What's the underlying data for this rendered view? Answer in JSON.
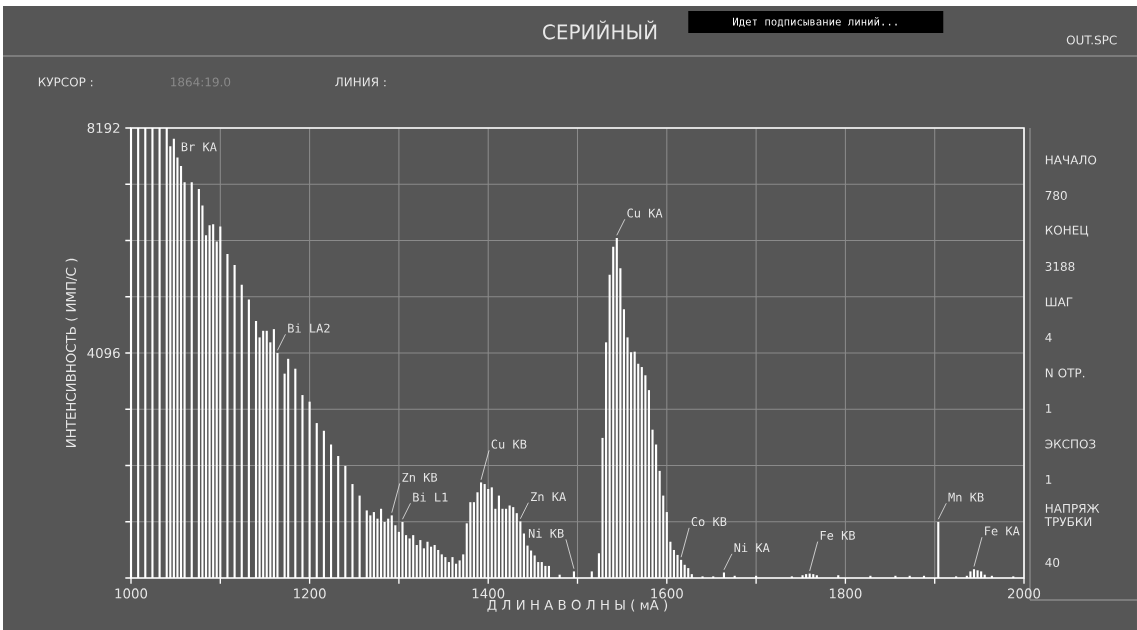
{
  "chart_data": {
    "type": "bar",
    "title": "СЕРИЙНЫЙ",
    "xlabel": "Д Л И Н А   В О Л Н Ы  ( мА )",
    "ylabel": "ИНТЕНСИВНОСТЬ ( ИМП/С )",
    "x": [
      1000,
      1008,
      1016,
      1024,
      1032,
      1040,
      1044,
      1048,
      1052,
      1056,
      1060,
      1068,
      1076,
      1080,
      1084,
      1088,
      1092,
      1096,
      1100,
      1108,
      1116,
      1124,
      1132,
      1140,
      1144,
      1148,
      1152,
      1156,
      1160,
      1164,
      1172,
      1176,
      1184,
      1192,
      1200,
      1208,
      1216,
      1224,
      1232,
      1240,
      1248,
      1256,
      1264,
      1268,
      1272,
      1276,
      1280,
      1284,
      1288,
      1292,
      1296,
      1300,
      1304,
      1308,
      1312,
      1316,
      1320,
      1324,
      1328,
      1332,
      1336,
      1340,
      1344,
      1348,
      1352,
      1356,
      1360,
      1364,
      1368,
      1372,
      1376,
      1380,
      1384,
      1388,
      1392,
      1396,
      1400,
      1404,
      1408,
      1412,
      1416,
      1420,
      1424,
      1428,
      1432,
      1436,
      1440,
      1444,
      1448,
      1452,
      1456,
      1460,
      1464,
      1468,
      1480,
      1496,
      1516,
      1524,
      1528,
      1532,
      1536,
      1540,
      1544,
      1548,
      1552,
      1556,
      1560,
      1564,
      1568,
      1572,
      1576,
      1580,
      1584,
      1588,
      1592,
      1596,
      1600,
      1604,
      1608,
      1612,
      1616,
      1620,
      1624,
      1628,
      1640,
      1652,
      1664,
      1676,
      1700,
      1740,
      1752,
      1756,
      1760,
      1764,
      1768,
      1792,
      1828,
      1856,
      1872,
      1888,
      1904,
      1924,
      1936,
      1940,
      1944,
      1948,
      1952,
      1956,
      1964,
      1988
    ],
    "values": [
      8192,
      8192,
      8192,
      8192,
      8192,
      8192,
      7858,
      7996,
      7654,
      7500,
      7205,
      7205,
      7080,
      6780,
      6240,
      6420,
      6440,
      6125,
      6400,
      5900,
      5700,
      5340,
      5070,
      4680,
      4380,
      4500,
      4500,
      4290,
      4530,
      4096,
      3720,
      3990,
      3810,
      3330,
      3210,
      2820,
      2680,
      2430,
      2220,
      2040,
      1710,
      1500,
      1230,
      1140,
      1200,
      1080,
      1260,
      1020,
      1080,
      1140,
      960,
      840,
      1020,
      780,
      720,
      780,
      600,
      690,
      540,
      660,
      570,
      600,
      510,
      430,
      380,
      290,
      380,
      260,
      320,
      430,
      995,
      1380,
      1380,
      1560,
      1740,
      1710,
      1620,
      1650,
      1260,
      1500,
      1260,
      1260,
      1320,
      1290,
      1180,
      1030,
      810,
      590,
      500,
      410,
      290,
      290,
      220,
      220,
      60,
      120,
      120,
      450,
      2550,
      4290,
      5520,
      6030,
      6190,
      5640,
      4890,
      4380,
      4110,
      4120,
      3900,
      3840,
      3690,
      3420,
      2700,
      2430,
      1950,
      1500,
      1200,
      660,
      510,
      420,
      330,
      240,
      180,
      70,
      30,
      30,
      100,
      40,
      40,
      30,
      50,
      70,
      80,
      70,
      50,
      50,
      40,
      40,
      40,
      40,
      1020,
      30,
      40,
      120,
      160,
      140,
      120,
      60,
      40,
      30
    ],
    "color": "#ffffff",
    "xlim": [
      1000,
      2000
    ],
    "xticks": [
      1000,
      {
        "value": 1100,
        "label": null
      },
      1200,
      {
        "value": 1300,
        "label": null
      },
      1400,
      {
        "value": 1500,
        "label": null
      },
      1600,
      {
        "value": 1700,
        "label": null
      },
      1800,
      {
        "value": 1900,
        "label": null
      },
      2000
    ],
    "ylim": [
      0,
      8192
    ],
    "yticks": [
      {
        "value": 0,
        "label": null
      },
      {
        "value": 1024,
        "label": null
      },
      {
        "value": 2048,
        "label": null
      },
      {
        "value": 3072,
        "label": null
      },
      4096,
      {
        "value": 5120,
        "label": null
      },
      {
        "value": 6144,
        "label": null
      },
      {
        "value": 7168,
        "label": null
      },
      8192
    ],
    "grid": true,
    "annotations": [
      "Идет подписывание линий...",
      "OUT.SPC",
      "КУРСОР :",
      "1864:19.0",
      "ЛИНИЯ :",
      "НАЧАЛО",
      "780",
      "КОНЕЦ",
      "3188",
      "ШАГ",
      "4",
      "N ОТР.",
      "1",
      "ЭКСПОЗ",
      "1",
      "НАПРЯЖ ТРУБКИ",
      "40",
      {
        "text": "Br KA",
        "x": 1048,
        "y": 7996
      },
      {
        "text": "Bi LA2",
        "x": 1164,
        "y": 4096
      },
      {
        "text": "Zn KB",
        "x": 1292,
        "y": 1140
      },
      {
        "text": "Bi L1",
        "x": 1304,
        "y": 1020
      },
      {
        "text": "Cu KB",
        "x": 1392,
        "y": 1740
      },
      {
        "text": "Zn KA",
        "x": 1436,
        "y": 1030
      },
      {
        "text": "Ni KB",
        "x": 1496,
        "y": 120
      },
      {
        "text": "Cu KA",
        "x": 1544,
        "y": 6190
      },
      {
        "text": "Co KB",
        "x": 1616,
        "y": 330
      },
      {
        "text": "Ni KA",
        "x": 1664,
        "y": 100
      },
      {
        "text": "Fe KB",
        "x": 1760,
        "y": 80
      },
      {
        "text": "Mn KB",
        "x": 1904,
        "y": 1020
      },
      {
        "text": "Fe KA",
        "x": 1944,
        "y": 160
      }
    ]
  }
}
